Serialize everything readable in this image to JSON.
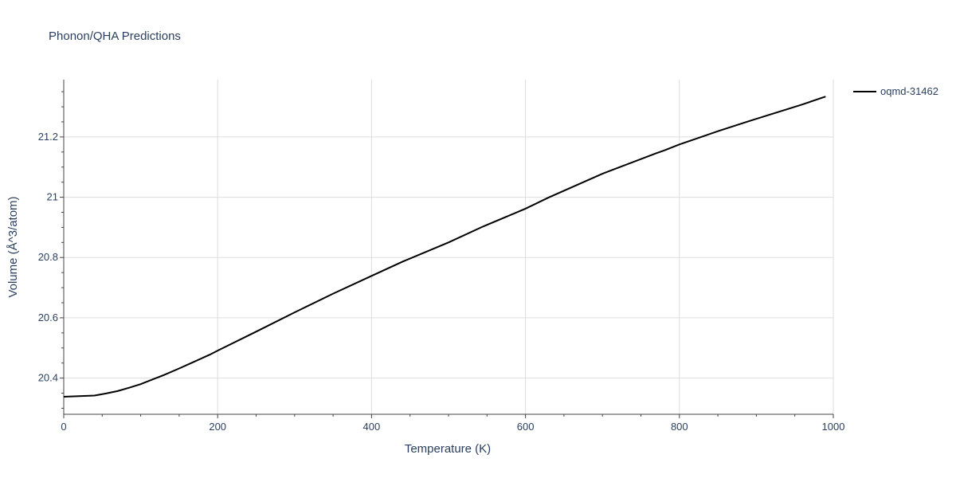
{
  "chart_data": {
    "type": "line",
    "title": "Phonon/QHA Predictions",
    "xlabel": "Temperature (K)",
    "ylabel": "Volume (Å^3/atom)",
    "xlim": [
      0,
      1000
    ],
    "ylim": [
      20.28,
      21.39
    ],
    "x_ticks": [
      0,
      200,
      400,
      600,
      800,
      1000
    ],
    "x_tick_labels": [
      "0",
      "200",
      "400",
      "600",
      "800",
      "1000"
    ],
    "y_ticks": [
      20.4,
      20.6,
      20.8,
      21.0,
      21.2
    ],
    "y_tick_labels": [
      "20.4",
      "20.6",
      "20.8",
      "21",
      "21.2"
    ],
    "grid": true,
    "legend_position": "top-right",
    "colors": {
      "line": "#000000",
      "grid": "#dddddd",
      "text": "#2a3f5f"
    },
    "series": [
      {
        "name": "oqmd-31462",
        "x": [
          0,
          20,
          40,
          55,
          70,
          85,
          100,
          115,
          130,
          150,
          170,
          190,
          200,
          250,
          300,
          350,
          400,
          440,
          500,
          545,
          600,
          630,
          700,
          770,
          780,
          800,
          850,
          890,
          960,
          990
        ],
        "y": [
          20.338,
          20.34,
          20.342,
          20.349,
          20.357,
          20.368,
          20.38,
          20.395,
          20.41,
          20.432,
          20.455,
          20.478,
          20.491,
          20.554,
          20.618,
          20.68,
          20.739,
          20.786,
          20.85,
          20.903,
          20.962,
          20.999,
          21.078,
          21.146,
          21.155,
          21.175,
          21.219,
          21.252,
          21.308,
          21.334
        ]
      }
    ]
  }
}
